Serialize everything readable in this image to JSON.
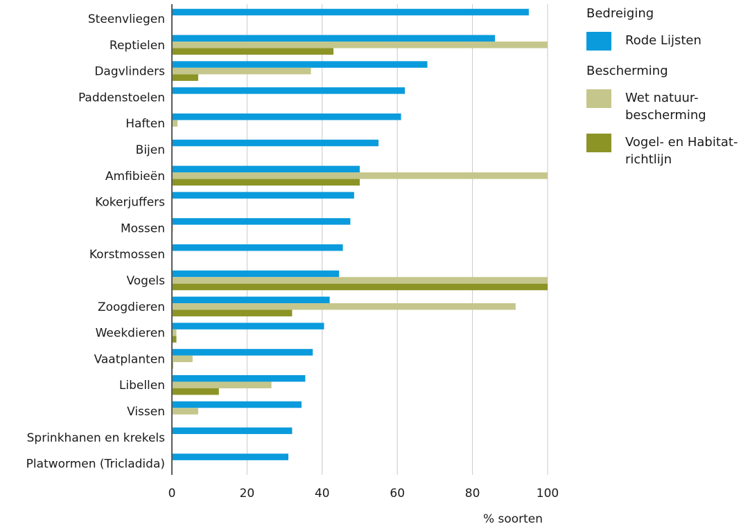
{
  "chart_data": {
    "type": "bar",
    "orientation": "horizontal",
    "categories": [
      "Steenvliegen",
      "Reptielen",
      "Dagvlinders",
      "Paddenstoelen",
      "Haften",
      "Bijen",
      "Amfibieën",
      "Kokerjuffers",
      "Mossen",
      "Korstmossen",
      "Vogels",
      "Zoogdieren",
      "Weekdieren",
      "Vaatplanten",
      "Libellen",
      "Vissen",
      "Sprinkhanen en krekels",
      "Platwormen (Tricladida)"
    ],
    "series": [
      {
        "name": "Rode Lijsten",
        "color": "#0a9bdc",
        "values": [
          95,
          86,
          68,
          62,
          61,
          55,
          50,
          48.5,
          47.5,
          45.5,
          44.5,
          42,
          40.5,
          37.5,
          35.5,
          34.5,
          32,
          31
        ]
      },
      {
        "name": "Wet natuur-\nbescherming",
        "color": "#c5c68b",
        "values": [
          0,
          100,
          37,
          0,
          1.5,
          0,
          100,
          0,
          0.3,
          0,
          100,
          91.5,
          1.2,
          5.5,
          26.5,
          7,
          0,
          0
        ]
      },
      {
        "name": "Vogel- en Habitat-\nrichtlijn",
        "color": "#8c9426",
        "values": [
          0,
          43,
          7,
          0,
          0,
          0,
          50,
          0,
          0,
          0,
          100,
          32,
          1.2,
          0.3,
          12.5,
          0,
          0,
          0
        ]
      }
    ],
    "xlim": [
      0,
      100
    ],
    "xticks": [
      "0",
      "20",
      "40",
      "60",
      "80",
      "100"
    ],
    "xlabel": "% soorten",
    "ylabel": "",
    "grid": "vertical",
    "legend": {
      "placement": "right",
      "groups": [
        {
          "title": "Bedreiging",
          "series": [
            0
          ]
        },
        {
          "title": "Bescherming",
          "series": [
            1,
            2
          ]
        }
      ]
    }
  }
}
